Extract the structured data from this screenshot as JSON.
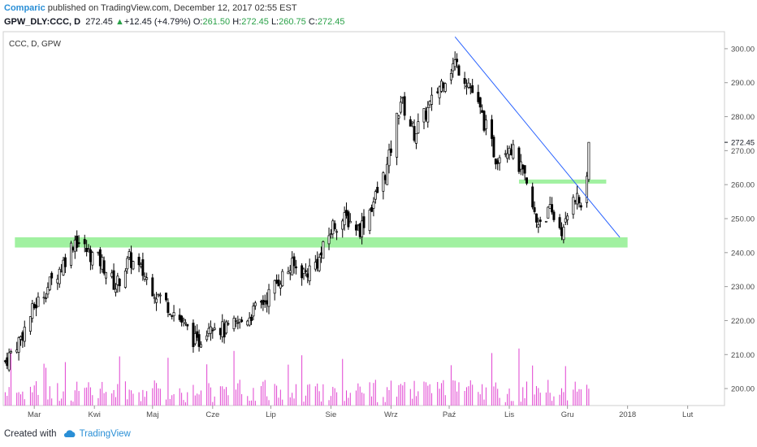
{
  "header": {
    "author": "Comparic",
    "published_text": " published on TradingView.com, December 12, 2017 02:55 EST"
  },
  "ohlc": {
    "symbol": "GPW_DLY:CCC, D",
    "price": "272.45",
    "change": "+12.45 (+4.79%)",
    "o_label": "O:",
    "o_value": "261.50",
    "h_label": "H:",
    "h_value": "272.45",
    "l_label": "L:",
    "l_value": "260.75",
    "c_label": "C:",
    "c_value": "272.45",
    "arrow_icon": "up-triangle-icon"
  },
  "footer": {
    "created_with": "Created with",
    "brand": "TradingView",
    "logo_icon": "tradingview-cloud-icon"
  },
  "colors": {
    "candle_up": "#ffffff",
    "candle_down": "#000000",
    "volume": "#e040d0",
    "trendline": "#2962ff",
    "zone": "#90ee90",
    "last_price_label": "#131722",
    "up_text": "#2aa148"
  },
  "chart_data": {
    "type": "candlestick",
    "pane_label": "CCC, D, GPW",
    "ylim": [
      195,
      305
    ],
    "y_ticks": [
      200,
      210,
      220,
      230,
      240,
      250,
      260,
      270,
      280,
      290,
      300
    ],
    "y_tick_labels": [
      "200.00",
      "210.00",
      "220.00",
      "230.00",
      "240.00",
      "250.00",
      "260.00",
      "270.00",
      "280.00",
      "290.00",
      "300.00"
    ],
    "last_price_label": "272.45",
    "x_tick_labels": [
      "Mar",
      "Kwi",
      "Maj",
      "Cze",
      "Lip",
      "Sie",
      "Wrz",
      "Paź",
      "Lis",
      "Gru",
      "2018",
      "Lut"
    ],
    "x_range": [
      "2017-02-13",
      "2018-02-20"
    ],
    "x_ticks": [
      "2017-03-01",
      "2017-04-01",
      "2017-05-01",
      "2017-06-01",
      "2017-07-01",
      "2017-08-01",
      "2017-09-01",
      "2017-10-01",
      "2017-11-01",
      "2017-12-01",
      "2018-01-01",
      "2018-02-01"
    ],
    "close_path": [
      [
        "2017-02-14",
        208
      ],
      [
        "2017-02-22",
        215
      ],
      [
        "2017-03-01",
        224
      ],
      [
        "2017-03-08",
        230
      ],
      [
        "2017-03-15",
        236
      ],
      [
        "2017-03-22",
        244
      ],
      [
        "2017-03-29",
        240
      ],
      [
        "2017-04-05",
        237
      ],
      [
        "2017-04-12",
        230
      ],
      [
        "2017-04-19",
        238
      ],
      [
        "2017-04-26",
        234
      ],
      [
        "2017-05-03",
        228
      ],
      [
        "2017-05-10",
        224
      ],
      [
        "2017-05-17",
        219
      ],
      [
        "2017-05-24",
        213
      ],
      [
        "2017-05-31",
        220
      ],
      [
        "2017-06-07",
        217
      ],
      [
        "2017-06-14",
        219
      ],
      [
        "2017-06-21",
        222
      ],
      [
        "2017-06-28",
        226
      ],
      [
        "2017-07-05",
        232
      ],
      [
        "2017-07-12",
        236
      ],
      [
        "2017-07-19",
        234
      ],
      [
        "2017-07-26",
        238
      ],
      [
        "2017-08-02",
        248
      ],
      [
        "2017-08-09",
        250
      ],
      [
        "2017-08-16",
        247
      ],
      [
        "2017-08-23",
        255
      ],
      [
        "2017-08-30",
        265
      ],
      [
        "2017-09-06",
        285
      ],
      [
        "2017-09-13",
        275
      ],
      [
        "2017-09-20",
        282
      ],
      [
        "2017-09-27",
        290
      ],
      [
        "2017-10-04",
        296
      ],
      [
        "2017-10-11",
        290
      ],
      [
        "2017-10-18",
        280
      ],
      [
        "2017-10-25",
        268
      ],
      [
        "2017-11-01",
        272
      ],
      [
        "2017-11-08",
        263
      ],
      [
        "2017-11-15",
        249
      ],
      [
        "2017-11-22",
        252
      ],
      [
        "2017-11-29",
        246
      ],
      [
        "2017-12-04",
        258
      ],
      [
        "2017-12-08",
        254
      ],
      [
        "2017-12-11",
        260
      ],
      [
        "2017-12-12",
        272.45
      ]
    ],
    "zones": [
      {
        "from": "2017-02-19",
        "to": "2018-01-01",
        "low": 241.5,
        "high": 244.5
      },
      {
        "from": "2017-11-06",
        "to": "2017-12-21",
        "low": 260.3,
        "high": 261.5
      }
    ],
    "trendline": {
      "from": [
        "2017-10-04",
        303.5
      ],
      "to": [
        "2017-12-28",
        244.5
      ]
    },
    "volume_max_label": null,
    "grid": false,
    "legend": "none"
  }
}
